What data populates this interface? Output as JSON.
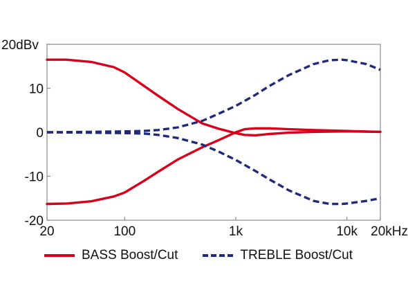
{
  "chart_data": {
    "type": "line",
    "title": "",
    "xlabel": "",
    "ylabel": "",
    "x_scale": "log",
    "xlim": [
      20,
      20000
    ],
    "ylim": [
      -20,
      20
    ],
    "grid": false,
    "legend_position": "bottom",
    "x_ticks": [
      {
        "value": 20,
        "label": "20"
      },
      {
        "value": 100,
        "label": "100"
      },
      {
        "value": 1000,
        "label": "1k"
      },
      {
        "value": 10000,
        "label": "10k"
      },
      {
        "value": 20000,
        "label": "20kHz"
      }
    ],
    "y_ticks": [
      {
        "value": 20,
        "label": "20dBv"
      },
      {
        "value": 10,
        "label": "10"
      },
      {
        "value": 0,
        "label": "0"
      },
      {
        "value": -10,
        "label": "-10"
      },
      {
        "value": -20,
        "label": "-20"
      }
    ],
    "series": [
      {
        "name": "BASS Boost/Cut",
        "style": "solid",
        "color": "#d9001b",
        "curves": [
          {
            "x": [
              20,
              30,
              50,
              80,
              100,
              150,
              200,
              300,
              500,
              700,
              1000,
              1200,
              1500,
              2000,
              3000,
              5000,
              10000,
              20000
            ],
            "y": [
              16.5,
              16.5,
              16.0,
              14.8,
              13.6,
              10.5,
              8.3,
              5.3,
              2.0,
              0.8,
              -0.2,
              -0.6,
              -0.7,
              -0.4,
              -0.1,
              0.1,
              0.2,
              0.1
            ]
          },
          {
            "x": [
              20,
              30,
              50,
              80,
              100,
              150,
              200,
              300,
              500,
              700,
              1000,
              1200,
              1500,
              2000,
              3000,
              5000,
              10000,
              20000
            ],
            "y": [
              -16.3,
              -16.2,
              -15.7,
              -14.6,
              -13.7,
              -11.0,
              -9.0,
              -6.2,
              -3.4,
              -1.8,
              0.0,
              0.7,
              0.9,
              0.9,
              0.7,
              0.5,
              0.3,
              0.1
            ]
          }
        ]
      },
      {
        "name": "TREBLE Boost/Cut",
        "style": "dashed",
        "color": "#1f2a7a",
        "curves": [
          {
            "x": [
              20,
              50,
              100,
              150,
              200,
              300,
              500,
              700,
              1000,
              1500,
              2000,
              3000,
              5000,
              7000,
              9000,
              10000,
              15000,
              20000
            ],
            "y": [
              0.0,
              0.1,
              0.2,
              0.3,
              0.5,
              1.1,
              2.6,
              4.2,
              6.0,
              8.5,
              10.5,
              13.0,
              15.5,
              16.4,
              16.5,
              16.4,
              15.5,
              14.2
            ]
          },
          {
            "x": [
              20,
              50,
              100,
              150,
              200,
              300,
              500,
              700,
              1000,
              1500,
              2000,
              3000,
              5000,
              7000,
              9000,
              10000,
              15000,
              20000
            ],
            "y": [
              0.0,
              -0.1,
              -0.2,
              -0.3,
              -0.6,
              -1.3,
              -2.8,
              -4.4,
              -6.3,
              -8.8,
              -10.7,
              -13.2,
              -15.6,
              -16.3,
              -16.3,
              -16.2,
              -15.6,
              -15.0
            ]
          }
        ]
      }
    ]
  }
}
